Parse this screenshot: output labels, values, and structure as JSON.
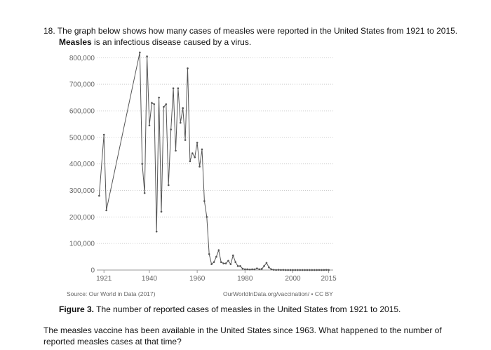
{
  "question": {
    "number": "18.",
    "line1": "The graph below shows how many cases of measles were reported in the United States from 1921 to 2015.",
    "bold": "Measles",
    "line2": " is an infectious disease caused by a virus."
  },
  "chart_data": {
    "type": "line",
    "color": "#555555",
    "x": [
      1919,
      1921,
      1922,
      1936,
      1937,
      1938,
      1939,
      1940,
      1941,
      1942,
      1943,
      1944,
      1945,
      1946,
      1947,
      1948,
      1949,
      1950,
      1951,
      1952,
      1953,
      1954,
      1955,
      1956,
      1957,
      1958,
      1959,
      1960,
      1961,
      1962,
      1963,
      1964,
      1965,
      1966,
      1967,
      1968,
      1969,
      1970,
      1971,
      1972,
      1973,
      1974,
      1975,
      1976,
      1977,
      1978,
      1979,
      1980,
      1981,
      1982,
      1983,
      1984,
      1985,
      1986,
      1987,
      1988,
      1989,
      1990,
      1991,
      1992,
      1993,
      1994,
      1995,
      1996,
      1997,
      1998,
      1999,
      2000,
      2001,
      2002,
      2003,
      2004,
      2005,
      2006,
      2007,
      2008,
      2009,
      2010,
      2011,
      2012,
      2013,
      2014,
      2015
    ],
    "values": [
      280000,
      510000,
      225000,
      820000,
      400000,
      290000,
      805000,
      545000,
      630000,
      625000,
      145000,
      650000,
      220000,
      615000,
      625000,
      320000,
      530000,
      685000,
      450000,
      685000,
      555000,
      610000,
      490000,
      760000,
      410000,
      440000,
      425000,
      480000,
      390000,
      455000,
      260000,
      200000,
      60000,
      22000,
      30000,
      50000,
      75000,
      30000,
      25000,
      25000,
      35000,
      22000,
      55000,
      30000,
      15000,
      15000,
      5000,
      3000,
      3000,
      2000,
      3000,
      2500,
      6000,
      3000,
      4000,
      15000,
      27000,
      10000,
      3000,
      1000,
      300,
      900,
      300,
      500,
      100,
      100,
      100,
      100,
      100,
      100,
      100,
      100,
      100,
      100,
      100,
      100,
      100,
      100,
      200,
      100,
      200,
      600,
      200
    ],
    "xlim": [
      1918,
      2016
    ],
    "xticks": [
      1921,
      1940,
      1960,
      1980,
      2000,
      2015
    ],
    "ylim": [
      0,
      830000
    ],
    "yticks": [
      0,
      {
        "value": 100000,
        "label": "100,000"
      },
      {
        "value": 200000,
        "label": "200,000"
      },
      {
        "value": 300000,
        "label": "300,000"
      },
      {
        "value": 400000,
        "label": "400,000"
      },
      {
        "value": 500000,
        "label": "500,000"
      },
      {
        "value": 600000,
        "label": "600,000"
      },
      {
        "value": 700000,
        "label": "700,000"
      },
      {
        "value": 800000,
        "label": "800,000"
      }
    ],
    "grid": true,
    "source_left": "Source: Our World in Data (2017)",
    "source_right": "OurWorldInData.org/vaccination/ • CC BY"
  },
  "caption": {
    "label": "Figure 3.",
    "text": " The number of reported cases of measles in the United States from 1921 to 2015."
  },
  "prompt": {
    "lines": [
      "The measles vaccine has been available in the United States since 1963. What happened to the number of",
      "reported measles cases at that time?"
    ]
  }
}
